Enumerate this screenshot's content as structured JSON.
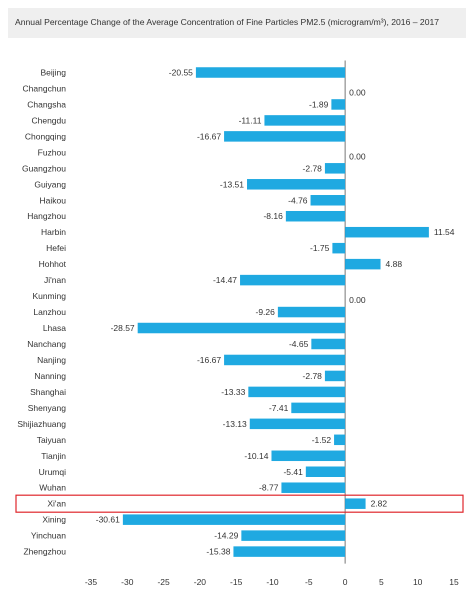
{
  "chart_data": {
    "type": "bar",
    "orientation": "horizontal",
    "title": "Annual Percentage Change of the Average Concentration of Fine Particles PM2.5 (microgram/m³), 2016 – 2017",
    "xlabel": "",
    "ylabel": "",
    "xlim": [
      -35,
      15
    ],
    "xticks": [
      "-35",
      "-30",
      "-25",
      "-20",
      "-15",
      "-10",
      "-5",
      "0",
      "5",
      "10",
      "15"
    ],
    "grid": false,
    "bar_color": "#1fa9e1",
    "highlight_color": "#e0262b",
    "highlighted_category": "Xi'an",
    "categories": [
      "Beijing",
      "Changchun",
      "Changsha",
      "Chengdu",
      "Chongqing",
      "Fuzhou",
      "Guangzhou",
      "Guiyang",
      "Haikou",
      "Hangzhou",
      "Harbin",
      "Hefei",
      "Hohhot",
      "Ji'nan",
      "Kunming",
      "Lanzhou",
      "Lhasa",
      "Nanchang",
      "Nanjing",
      "Nanning",
      "Shanghai",
      "Shenyang",
      "Shijiazhuang",
      "Taiyuan",
      "Tianjin",
      "Urumqi",
      "Wuhan",
      "Xi'an",
      "Xining",
      "Yinchuan",
      "Zhengzhou"
    ],
    "values": [
      -20.55,
      0.0,
      -1.89,
      -11.11,
      -16.67,
      0.0,
      -2.78,
      -13.51,
      -4.76,
      -8.16,
      11.54,
      -1.75,
      4.88,
      -14.47,
      0.0,
      -9.26,
      -28.57,
      -4.65,
      -16.67,
      -2.78,
      -13.33,
      -7.41,
      -13.13,
      -1.52,
      -10.14,
      -5.41,
      -8.77,
      2.82,
      -30.61,
      -14.29,
      -15.38
    ],
    "value_labels": [
      "-20.55",
      "0.00",
      "-1.89",
      "-11.11",
      "-16.67",
      "0.00",
      "-2.78",
      "-13.51",
      "-4.76",
      "-8.16",
      "11.54",
      "-1.75",
      "4.88",
      "-14.47",
      "0.00",
      "-9.26",
      "-28.57",
      "-4.65",
      "-16.67",
      "-2.78",
      "-13.33",
      "-7.41",
      "-13.13",
      "-1.52",
      "-10.14",
      "-5.41",
      "-8.77",
      "2.82",
      "-30.61",
      "-14.29",
      "-15.38"
    ]
  }
}
